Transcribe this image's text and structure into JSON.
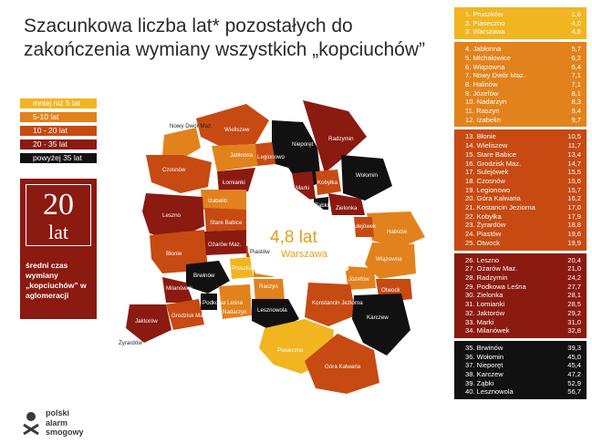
{
  "title": "Szacunkowa liczba lat* pozostałych do zakończenia wymiany wszystkich „kopciuchów”",
  "legend": [
    {
      "label": "mniej niż 5 lat",
      "color": "#f0b521"
    },
    {
      "label": "5-10 lat",
      "color": "#e2821d"
    },
    {
      "label": "10 - 20 lat",
      "color": "#c74a12"
    },
    {
      "label": "20 - 35 lat",
      "color": "#8b1a10"
    },
    {
      "label": "powyżej 35 lat",
      "color": "#111111"
    }
  ],
  "stat": {
    "number": "20",
    "unit": "lat",
    "caption": "średni czas wymiany „kopciuchów” w aglomeracji"
  },
  "logo": {
    "line1": "polski",
    "line2": "alarm",
    "line3": "smogowy"
  },
  "map": {
    "center_value": "4,8 lat",
    "center_name": "Warszawa",
    "labels": {
      "nowy_dwor": "Nowy Dwór Maz.",
      "wieliszew": "Wieliszew",
      "nieporet": "Nieporęt",
      "radzymin": "Radzymin",
      "jablonna": "Jabłonna",
      "legionowo": "Legionowo",
      "czosnow": "Czosnów",
      "lomianki": "Łomianki",
      "izabelin": "Izabelin",
      "marki": "Marki",
      "kobylka": "Kobyłka",
      "wolomin": "Wołomin",
      "zabki": "Ząbki",
      "zielonka": "Zielonka",
      "leszno": "Leszno",
      "stare_babice": "Stare Babice",
      "halinow": "Halinów",
      "sulejowek": "Sulejówek",
      "blonie": "Błonie",
      "ozarow": "Ożarów Maz.",
      "piastow": "Piastów",
      "wiazowna": "Wiązowna",
      "brwinow": "Brwinów",
      "pruszkow": "Pruszków",
      "michalowice": "Michałowice",
      "milanowek": "Milanówek",
      "raszyn": "Raszyn",
      "jozefow": "Józefów",
      "grodzisk": "Grodzisk Maz.",
      "podkowa": "Podkowa Leśna",
      "lesznowola": "Lesznowola",
      "nadarzyn": "Nadarzyn",
      "otwock": "Otwock",
      "konstancin": "Konstancin Jeziorna",
      "karczew": "Karczew",
      "jaktorow": "Jaktorów",
      "piaseczno": "Piaseczno",
      "zyrardow": "Żyrardów",
      "gora_kalwaria": "Góra Kalwaria"
    }
  },
  "ranking": [
    {
      "group": "g1",
      "rows": [
        {
          "name": "1. Pruszków",
          "value": "1,6"
        },
        {
          "name": "2. Piaseczno",
          "value": "4,0"
        },
        {
          "name": "3. Warszawa",
          "value": "4,8"
        }
      ]
    },
    {
      "group": "g2",
      "rows": [
        {
          "name": "4. Jabłonna",
          "value": "5,7"
        },
        {
          "name": "5. Michałowice",
          "value": "6,2"
        },
        {
          "name": "6. Wiązowna",
          "value": "6,4"
        },
        {
          "name": "7. Nowy Dwór Maz.",
          "value": "7,1"
        },
        {
          "name": "8. Halinów",
          "value": "7,1"
        },
        {
          "name": "9. Józefów",
          "value": "8,1"
        },
        {
          "name": "10. Nadarzyn",
          "value": "8,3"
        },
        {
          "name": "11. Raszyn",
          "value": "9,4"
        },
        {
          "name": "12. Izabelin",
          "value": "9,7"
        }
      ]
    },
    {
      "group": "g3",
      "rows": [
        {
          "name": "13. Błonie",
          "value": "10,5"
        },
        {
          "name": "14. Wieliszew",
          "value": "11,7"
        },
        {
          "name": "15. Stare Babice",
          "value": "13,4"
        },
        {
          "name": "16. Grodzisk Maz.",
          "value": "14,7"
        },
        {
          "name": "17. Sulejówek",
          "value": "15,5"
        },
        {
          "name": "18. Czosnów",
          "value": "15,6"
        },
        {
          "name": "19. Legionowo",
          "value": "15,7"
        },
        {
          "name": "20. Góra Kalwaria",
          "value": "16,2"
        },
        {
          "name": "21. Kostancin Jeziorna",
          "value": "17,0"
        },
        {
          "name": "22. Kobyłka",
          "value": "17,9"
        },
        {
          "name": "23. Żyrardów",
          "value": "18,8"
        },
        {
          "name": "24. Piastów",
          "value": "19,6"
        },
        {
          "name": "25. Otwock",
          "value": "19,9"
        }
      ]
    },
    {
      "group": "g4",
      "rows": [
        {
          "name": "26. Leszno",
          "value": "20,4"
        },
        {
          "name": "27. Ożarów Maz.",
          "value": "21,0"
        },
        {
          "name": "28. Radzymin",
          "value": "24,2"
        },
        {
          "name": "29. Podkowa Leśna",
          "value": "27,7"
        },
        {
          "name": "30. Zielonka",
          "value": "28,1"
        },
        {
          "name": "31. Łomianki",
          "value": "28,5"
        },
        {
          "name": "32. Jaktorów",
          "value": "29,2"
        },
        {
          "name": "33. Marki",
          "value": "31,0"
        },
        {
          "name": "34. Milanówek",
          "value": "32,8"
        }
      ]
    },
    {
      "group": "g5",
      "rows": [
        {
          "name": "35. Brwinów",
          "value": "39,3"
        },
        {
          "name": "36. Wołomin",
          "value": "45,0"
        },
        {
          "name": "37. Nieporęt",
          "value": "45,4"
        },
        {
          "name": "38. Karczew",
          "value": "47,2"
        },
        {
          "name": "39. Ząbki",
          "value": "52,9"
        },
        {
          "name": "40. Lesznowola",
          "value": "56,7"
        }
      ]
    }
  ]
}
